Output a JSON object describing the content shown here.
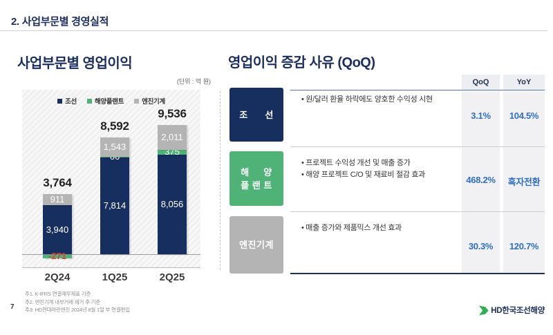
{
  "header": {
    "title": "2. 사업부문별 경영실적"
  },
  "left_panel": {
    "title": "사업부문별 영업이익",
    "unit_label": "(단위 : 억 원)"
  },
  "chart_data": {
    "type": "bar",
    "stacked": true,
    "title": "사업부문별 영업이익",
    "unit": "억 원",
    "xlabel": "",
    "ylabel": "",
    "legend_position": "top-center",
    "grid": false,
    "categories": [
      "2Q24",
      "1Q25",
      "2Q25"
    ],
    "totals": [
      3764,
      8592,
      9536
    ],
    "series": [
      {
        "name": "조선",
        "color": "#172f5f",
        "values": [
          3940,
          7814,
          8056
        ]
      },
      {
        "name": "해양플랜트",
        "color": "#4fb378",
        "values": [
          -271,
          66,
          375
        ]
      },
      {
        "name": "엔진기계",
        "color": "#b4b4b4",
        "values": [
          911,
          1543,
          2011
        ]
      }
    ]
  },
  "right_panel": {
    "title": "영업이익 증감 사유 (QoQ)",
    "table": {
      "col_headers": [
        "QoQ",
        "YoY"
      ],
      "rows": [
        {
          "category": "조선",
          "category_lines": [
            "조      선"
          ],
          "color": "#172f5f",
          "bullets": [
            "원/달러 환율 하락에도 양호한 수익성 시현"
          ],
          "qoq": "3.1%",
          "yoy": "104.5%"
        },
        {
          "category": "해양플랜트",
          "category_lines": [
            "해     양",
            "플 랜 트"
          ],
          "color": "#4fb378",
          "bullets": [
            "프로젝트 수익성 개선 및 매출 증가",
            "해양 프로젝트 C/O 및 재료비 절감 효과"
          ],
          "qoq": "468.2%",
          "yoy": "흑자전환"
        },
        {
          "category": "엔진기계",
          "category_lines": [
            "엔진기계"
          ],
          "color": "#b4b4b4",
          "bullets": [
            "매출 증가와 제품믹스 개선 효과"
          ],
          "qoq": "30.3%",
          "yoy": "120.7%"
        }
      ]
    }
  },
  "footer": {
    "page_number": "7",
    "footnotes": [
      "주1. K-IFRS 연결재무제표 기준",
      "주2. 엔진기계 내부거래 제거 후 기준",
      "주3: HD현대마린엔진 2024년 8월 1일 부 연결편입"
    ],
    "logo_text": "HD한국조선해양"
  },
  "colors": {
    "accent_navy": "#1b2e5e",
    "accent_green": "#4fb378",
    "accent_gray": "#b4b4b4",
    "value_blue": "#2e6fc0",
    "negative_red": "#e03c31"
  }
}
